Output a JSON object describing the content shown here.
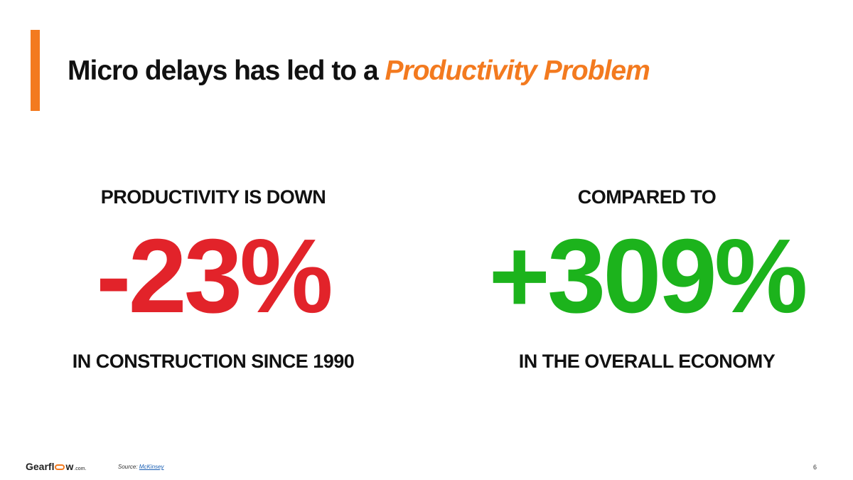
{
  "slide": {
    "title_prefix": "Micro delays has led to a ",
    "title_highlight": "Productivity Problem",
    "accent_color": "#f37a1f",
    "page_number": "6"
  },
  "stats": {
    "left": {
      "caption": "PRODUCTIVITY IS DOWN",
      "value": "-23%",
      "subcaption": "IN CONSTRUCTION SINCE 1990",
      "color": "#e2232a"
    },
    "right": {
      "caption": "COMPARED TO",
      "value": "+309%",
      "subcaption": "IN THE OVERALL ECONOMY",
      "color": "#1cb31c"
    }
  },
  "footer": {
    "logo_prefix": "Gearfl",
    "logo_suffix": "w",
    "logo_domain": ".com.",
    "source_label": "Source: ",
    "source_link": "McKinsey"
  }
}
